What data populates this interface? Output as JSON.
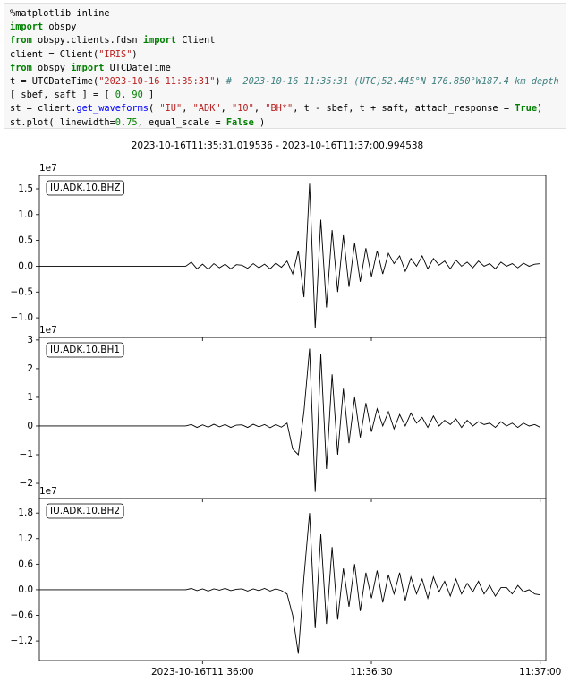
{
  "notebook": {
    "code": [
      [
        [
          "%matplotlib inline",
          "plain"
        ]
      ],
      [
        [
          "import",
          "kw"
        ],
        [
          " obspy",
          "plain"
        ]
      ],
      [
        [
          "from",
          "kw"
        ],
        [
          " obspy.clients.fdsn ",
          "plain"
        ],
        [
          "import",
          "kw"
        ],
        [
          " Client",
          "plain"
        ]
      ],
      [
        [
          "client = Client(",
          "plain"
        ],
        [
          "\"IRIS\"",
          "str"
        ],
        [
          ")",
          "plain"
        ]
      ],
      [
        [
          "from",
          "kw"
        ],
        [
          " obspy ",
          "plain"
        ],
        [
          "import",
          "kw"
        ],
        [
          " UTCDateTime",
          "plain"
        ]
      ],
      [
        [
          "t = UTCDateTime(",
          "plain"
        ],
        [
          "\"2023-10-16 11:35:31\"",
          "str"
        ],
        [
          ") ",
          "plain"
        ],
        [
          "#  2023-10-16 11:35:31 (UTC)52.445°N 176.850°W187.4 km depth",
          "cm"
        ]
      ],
      [
        [
          "[ sbef, saft ] = [ ",
          "plain"
        ],
        [
          "0",
          "num"
        ],
        [
          ", ",
          "plain"
        ],
        [
          "90",
          "num"
        ],
        [
          " ]",
          "plain"
        ]
      ],
      [
        [
          "st = client.",
          "plain"
        ],
        [
          "get_waveforms",
          "fn"
        ],
        [
          "( ",
          "plain"
        ],
        [
          "\"IU\"",
          "str"
        ],
        [
          ", ",
          "plain"
        ],
        [
          "\"ADK\"",
          "str"
        ],
        [
          ", ",
          "plain"
        ],
        [
          "\"10\"",
          "str"
        ],
        [
          ", ",
          "plain"
        ],
        [
          "\"BH*\"",
          "str"
        ],
        [
          ", t - sbef, t + saft, attach_response = ",
          "plain"
        ],
        [
          "True",
          "kw"
        ],
        [
          ")",
          "plain"
        ]
      ],
      [
        [
          "st.plot( linewidth=",
          "plain"
        ],
        [
          "0.75",
          "num"
        ],
        [
          ", equal_scale = ",
          "plain"
        ],
        [
          "False",
          "kw"
        ],
        [
          " )",
          "plain"
        ]
      ]
    ]
  },
  "chart_data": {
    "type": "line",
    "title": "2023-10-16T11:35:31.019536  -  2023-10-16T11:37:00.994538",
    "xlim": [
      0,
      89.975
    ],
    "xticks": [
      {
        "value": 28.98,
        "label": "2023-10-16T11:36:00"
      },
      {
        "value": 58.98,
        "label": "11:36:30"
      },
      {
        "value": 88.98,
        "label": "11:37:00"
      }
    ],
    "x": [
      0,
      1,
      2,
      3,
      4,
      5,
      6,
      7,
      8,
      9,
      10,
      11,
      12,
      13,
      14,
      15,
      16,
      17,
      18,
      19,
      20,
      21,
      22,
      23,
      24,
      25,
      26,
      27,
      28,
      29,
      30,
      31,
      32,
      33,
      34,
      35,
      36,
      37,
      38,
      39,
      40,
      41,
      42,
      43,
      44,
      45,
      46,
      47,
      48,
      49,
      50,
      51,
      52,
      53,
      54,
      55,
      56,
      57,
      58,
      59,
      60,
      61,
      62,
      63,
      64,
      65,
      66,
      67,
      68,
      69,
      70,
      71,
      72,
      73,
      74,
      75,
      76,
      77,
      78,
      79,
      80,
      81,
      82,
      83,
      84,
      85,
      86,
      87,
      88,
      89
    ],
    "panels": [
      {
        "offset_text": "1e7",
        "ylim": [
          -1.38,
          1.76
        ],
        "yticks": [
          {
            "value": -1,
            "label": "−1.0"
          },
          {
            "value": -0.5,
            "label": "−0.5"
          },
          {
            "value": 0,
            "label": "0.0"
          },
          0.5,
          {
            "value": 1,
            "label": "1.0"
          },
          1.5
        ],
        "series": [
          {
            "name": "IU.ADK.10.BHZ",
            "color": "#000000",
            "values": [
              0,
              0,
              0,
              0,
              0,
              0,
              0,
              0,
              0,
              0,
              0,
              0,
              0,
              0,
              0,
              0,
              0,
              0,
              0,
              0,
              0,
              0,
              0,
              0,
              0,
              0,
              0,
              0.08,
              -0.05,
              0.04,
              -0.06,
              0.05,
              -0.03,
              0.04,
              -0.05,
              0.03,
              0.02,
              -0.04,
              0.05,
              -0.03,
              0.04,
              -0.05,
              0.06,
              -0.02,
              0.1,
              -0.15,
              0.3,
              -0.6,
              1.6,
              -1.2,
              0.9,
              -0.8,
              0.7,
              -0.5,
              0.6,
              -0.4,
              0.45,
              -0.3,
              0.35,
              -0.2,
              0.3,
              -0.15,
              0.25,
              0.05,
              0.2,
              -0.1,
              0.15,
              0,
              0.2,
              -0.05,
              0.15,
              0.02,
              0.1,
              -0.05,
              0.12,
              0,
              0.08,
              -0.03,
              0.1,
              0,
              0.05,
              -0.05,
              0.08,
              0,
              0.05,
              -0.03,
              0.06,
              0,
              0.04,
              0.05
            ]
          }
        ]
      },
      {
        "offset_text": "1e7",
        "ylim": [
          -2.53,
          3.09
        ],
        "yticks": [
          {
            "value": -2,
            "label": "−2"
          },
          {
            "value": -1,
            "label": "−1"
          },
          0,
          1,
          2,
          3
        ],
        "series": [
          {
            "name": "IU.ADK.10.BH1",
            "color": "#000000",
            "values": [
              0,
              0,
              0,
              0,
              0,
              0,
              0,
              0,
              0,
              0,
              0,
              0,
              0,
              0,
              0,
              0,
              0,
              0,
              0,
              0,
              0,
              0,
              0,
              0,
              0,
              0,
              0,
              0.05,
              -0.05,
              0.04,
              -0.04,
              0.06,
              -0.03,
              0.05,
              -0.05,
              0.03,
              0.04,
              -0.05,
              0.06,
              -0.03,
              0.05,
              -0.06,
              0.05,
              -0.04,
              0.1,
              -0.8,
              -1.0,
              0.5,
              2.7,
              -2.3,
              2.5,
              -1.5,
              1.8,
              -1.0,
              1.3,
              -0.6,
              1.0,
              -0.4,
              0.8,
              -0.2,
              0.6,
              0,
              0.5,
              -0.1,
              0.4,
              0,
              0.45,
              0.1,
              0.3,
              -0.05,
              0.35,
              0,
              0.2,
              0.05,
              0.25,
              -0.05,
              0.2,
              0,
              0.15,
              0.05,
              0.1,
              -0.05,
              0.15,
              0,
              0.1,
              -0.05,
              0.1,
              0,
              0.05,
              -0.05
            ]
          }
        ]
      },
      {
        "offset_text": "1e7",
        "ylim": [
          -1.66,
          2.14
        ],
        "yticks": [
          {
            "value": -1.2,
            "label": "−1.2"
          },
          {
            "value": -0.6,
            "label": "−0.6"
          },
          {
            "value": 0,
            "label": "0.0"
          },
          0.6,
          1.2,
          1.8
        ],
        "series": [
          {
            "name": "IU.ADK.10.BH2",
            "color": "#000000",
            "values": [
              0,
              0,
              0,
              0,
              0,
              0,
              0,
              0,
              0,
              0,
              0,
              0,
              0,
              0,
              0,
              0,
              0,
              0,
              0,
              0,
              0,
              0,
              0,
              0,
              0,
              0,
              0,
              0.03,
              -0.02,
              0.02,
              -0.03,
              0.02,
              -0.01,
              0.03,
              -0.02,
              0.01,
              0.02,
              -0.03,
              0.02,
              -0.02,
              0.03,
              -0.03,
              0.02,
              -0.02,
              -0.1,
              -0.6,
              -1.5,
              0.3,
              1.8,
              -0.9,
              1.3,
              -0.8,
              1.0,
              -0.7,
              0.5,
              -0.4,
              0.6,
              -0.5,
              0.4,
              -0.2,
              0.45,
              -0.3,
              0.35,
              -0.1,
              0.4,
              -0.25,
              0.3,
              -0.1,
              0.25,
              -0.2,
              0.3,
              -0.05,
              0.2,
              -0.15,
              0.25,
              -0.1,
              0.15,
              -0.05,
              0.2,
              -0.1,
              0.1,
              -0.15,
              0.05,
              0.05,
              -0.1,
              0.1,
              -0.05,
              0,
              -0.1,
              -0.12
            ]
          }
        ]
      }
    ]
  }
}
